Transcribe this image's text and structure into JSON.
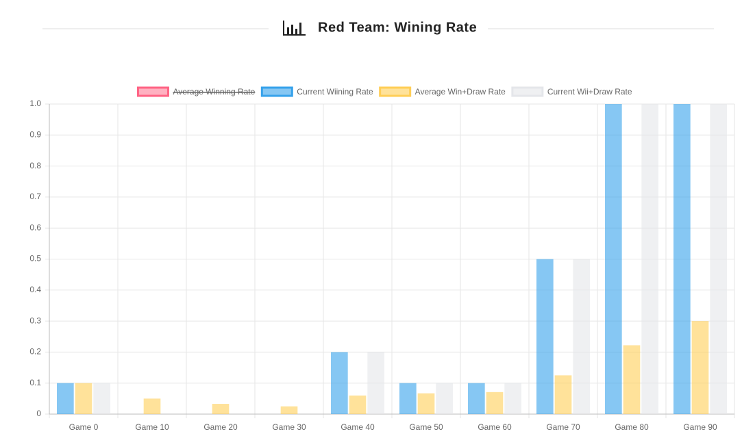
{
  "chart_data": {
    "type": "bar",
    "title": "Red Team: Wining Rate",
    "categories": [
      "Game 0",
      "Game 10",
      "Game 20",
      "Game 30",
      "Game 40",
      "Game 50",
      "Game 60",
      "Game 70",
      "Game 80",
      "Game 90"
    ],
    "series": [
      {
        "name": "Average Winning Rate",
        "color": "#ff6384",
        "hidden": true,
        "values": [
          null,
          null,
          null,
          null,
          null,
          null,
          null,
          null,
          null,
          null
        ]
      },
      {
        "name": "Current Wiining Rate",
        "color": "#36a2eb",
        "values": [
          0.1,
          0,
          0,
          0,
          0.2,
          0.1,
          0.1,
          0.5,
          1,
          1
        ]
      },
      {
        "name": "Average Win+Draw Rate",
        "color": "#ffce56",
        "values": [
          0.1,
          0.05,
          0.033,
          0.025,
          0.06,
          0.067,
          0.071,
          0.125,
          0.222,
          0.3
        ]
      },
      {
        "name": "Current Wii+Draw Rate",
        "color": "#e4e6ea",
        "values": [
          0.1,
          0,
          0,
          0,
          0.2,
          0.1,
          0.1,
          0.5,
          1,
          1
        ]
      }
    ],
    "ylim": [
      0,
      1
    ],
    "yticks": [
      0,
      0.1,
      0.2,
      0.3,
      0.4,
      0.5,
      0.6,
      0.7,
      0.8,
      0.9,
      {
        "value": 1,
        "label": "1.0"
      }
    ],
    "grid": true,
    "legend": "top"
  }
}
